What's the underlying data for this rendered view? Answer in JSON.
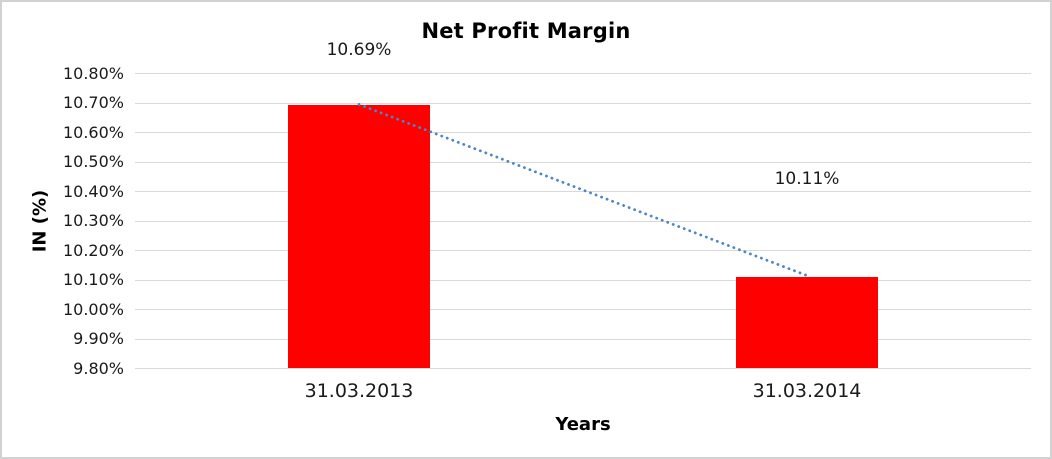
{
  "chart_data": {
    "type": "bar",
    "title": "Net Profit Margin",
    "xlabel": "Years",
    "ylabel": "IN (%)",
    "categories": [
      "31.03.2013",
      "31.03.2014"
    ],
    "values": [
      10.69,
      10.11
    ],
    "data_labels": [
      "10.69%",
      "10.11%"
    ],
    "unit": "percent",
    "ylim": [
      9.8,
      10.8
    ],
    "ytick_step": 0.1,
    "ytick_labels_top_to_bottom": [
      "10.80%",
      "10.70%",
      "10.60%",
      "10.50%",
      "10.40%",
      "10.30%",
      "10.20%",
      "10.10%",
      "10.00%",
      "9.90%",
      "9.80%"
    ],
    "grid": true,
    "legend": "none",
    "trendline": {
      "type": "linear",
      "style": "dotted",
      "connects": [
        "31.03.2013",
        "31.03.2014"
      ]
    },
    "colors": {
      "bar": "#ff0000",
      "trendline": "#4a86c8",
      "gridline": "#d9d9d9",
      "frame_border": "#d2d2d2",
      "background": "#ffffff",
      "text": "#1a1a1a"
    }
  }
}
